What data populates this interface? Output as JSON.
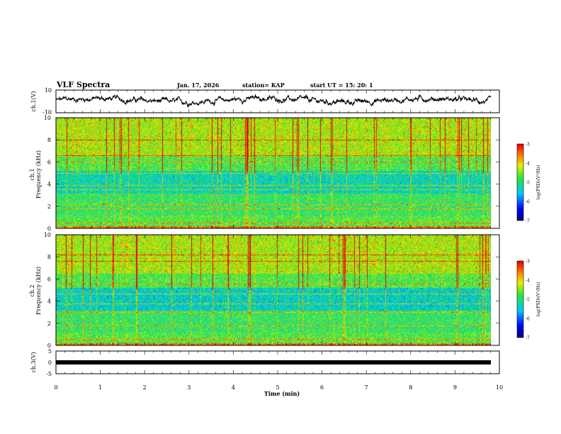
{
  "header": {
    "title": "VLF Spectra",
    "date": "Jan. 17, 2026",
    "station": "station= KAP",
    "start": "start  UT  =   15: 20: 1"
  },
  "chart_data": [
    {
      "type": "line",
      "name": "ch1-voltage",
      "ylabel": "ch.1(V)",
      "ylim": [
        -10,
        10
      ],
      "yticklabels": [
        "10",
        "-10"
      ],
      "xlim": [
        0,
        10
      ],
      "series": [
        {
          "name": "ch.1",
          "color": "#000000",
          "description_of_values": "noisy waveform oscillating roughly between -3 and 5 V"
        }
      ]
    },
    {
      "type": "heatmap",
      "name": "ch1-spectrogram",
      "ylabel": "ch.1\nFrequency (kHz)",
      "ylabel_lines": [
        "ch.1",
        "Frequency (kHz)"
      ],
      "ylim": [
        0,
        10
      ],
      "yticks": [
        0,
        2,
        4,
        6,
        8,
        10
      ],
      "yticklabels": [
        "0",
        "2",
        "4",
        "6",
        "8",
        "10"
      ],
      "xlim": [
        0,
        9.8
      ],
      "colorbar": {
        "label": "log(PSD)(V²/Hz)",
        "range": [
          -7,
          -3
        ],
        "ticks": [
          "-3",
          "-4",
          "-5",
          "-6",
          "-7"
        ]
      }
    },
    {
      "type": "heatmap",
      "name": "ch2-spectrogram",
      "ylabel": "ch.2\nFrequency (kHz)",
      "ylabel_lines": [
        "ch.2",
        "Frequency (kHz)"
      ],
      "ylim": [
        0,
        10
      ],
      "yticks": [
        0,
        2,
        4,
        6,
        8,
        10
      ],
      "yticklabels": [
        "0",
        "2",
        "4",
        "6",
        "8",
        "10"
      ],
      "xlim": [
        0,
        9.8
      ],
      "colorbar": {
        "label": "log(PSD)(V²/Hz)",
        "range": [
          -7,
          -3
        ],
        "ticks": [
          "-3",
          "-4",
          "-5",
          "-6",
          "-7"
        ]
      }
    },
    {
      "type": "line",
      "name": "ch3-voltage",
      "ylabel": "ch.3(V)",
      "ylim": [
        -5,
        5
      ],
      "yticks": [
        -5,
        0,
        5
      ],
      "yticklabels": [
        "5",
        "0",
        "-5"
      ],
      "xlim": [
        0,
        10
      ],
      "xlabel": "Time (min)",
      "xticks": [
        0,
        1,
        2,
        3,
        4,
        5,
        6,
        7,
        8,
        9,
        10
      ],
      "xticklabels": [
        "0",
        "1",
        "2",
        "3",
        "4",
        "5",
        "6",
        "7",
        "8",
        "9",
        "10"
      ],
      "series": [
        {
          "name": "ch.3",
          "color": "#000000",
          "description_of_values": "thick flat line near -1.5 V"
        }
      ]
    }
  ]
}
